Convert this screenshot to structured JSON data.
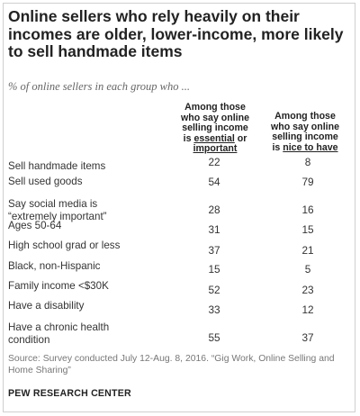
{
  "title": "Online sellers who rely heavily on their incomes are older, lower-income, more likely to sell handmade  items",
  "subtitle": "% of online sellers in each group who ...",
  "columns": {
    "essential": {
      "line1": "Among those",
      "line2": "who say online",
      "line3": "selling income",
      "line4_pre": "is ",
      "line4_u": "essential",
      "line4_post": " or",
      "line5_u": "important"
    },
    "nice": {
      "line1": "Among those",
      "line2": "who say online",
      "line3": "selling income",
      "line4_pre": "is ",
      "line4_u": "nice to have"
    }
  },
  "chart_data": {
    "type": "table",
    "series": [
      {
        "name": "Among those who say online selling income is essential or important",
        "values": [
          22,
          54,
          28,
          31,
          37,
          15,
          52,
          33,
          55
        ]
      },
      {
        "name": "Among those who say online selling income is nice to have",
        "values": [
          8,
          79,
          16,
          15,
          21,
          5,
          23,
          12,
          37
        ]
      }
    ],
    "categories": [
      "Sell handmade items",
      "Sell used goods",
      "Say social media is “extremely important”",
      "Ages 50-64",
      "High school grad or less",
      "Black, non-Hispanic",
      "Family income <$30K",
      "Have a disability",
      "Have a chronic health condition"
    ]
  },
  "source": "Source: Survey conducted July 12-Aug. 8, 2016. “Gig Work, Online Selling and Home Sharing”",
  "brand": "PEW RESEARCH CENTER"
}
